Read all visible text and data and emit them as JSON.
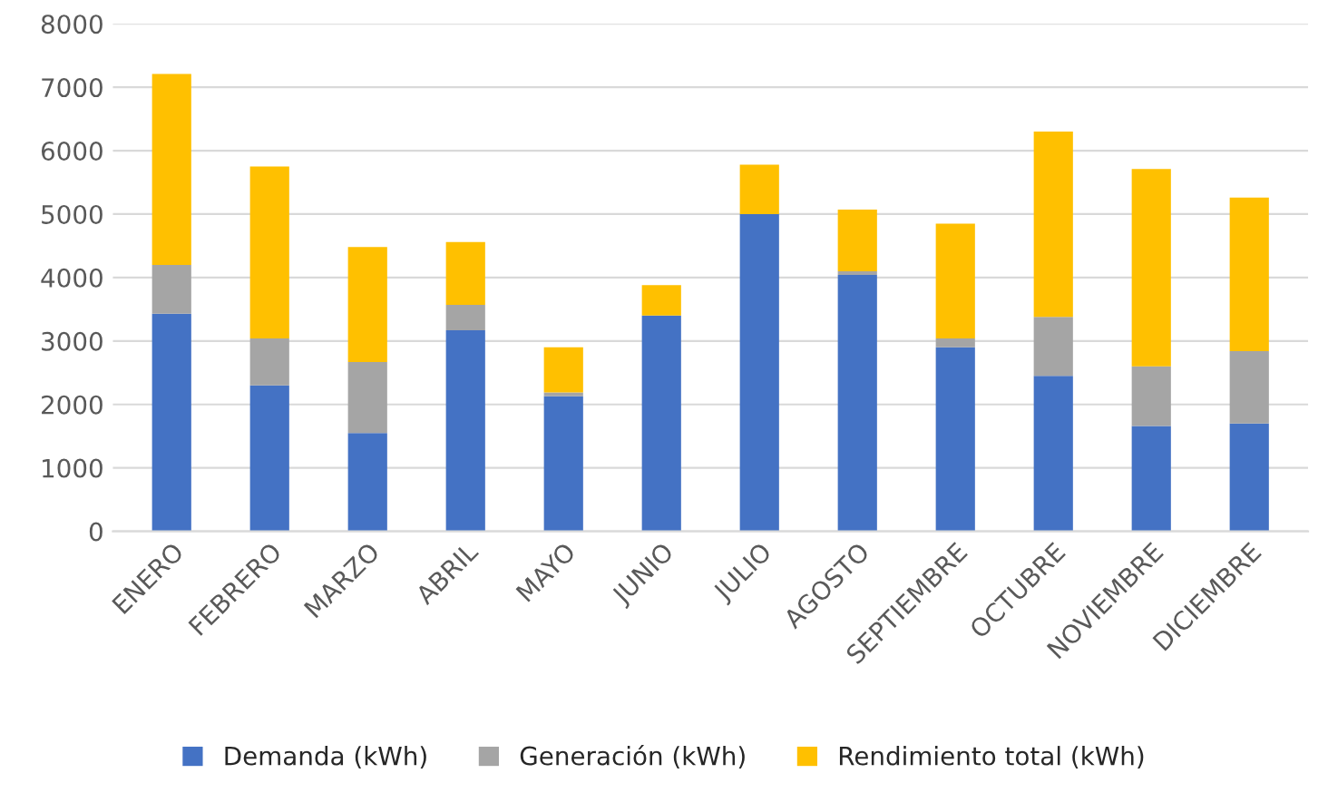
{
  "chart_data": {
    "type": "bar",
    "stacked": true,
    "categories": [
      "ENERO",
      "FEBRERO",
      "MARZO",
      "ABRIL",
      "MAYO",
      "JUNIO",
      "JULIO",
      "AGOSTO",
      "SEPTIEMBRE",
      "OCTUBRE",
      "NOVIEMBRE",
      "DICIEMBRE"
    ],
    "series": [
      {
        "name": "Demanda (kWh)",
        "color": "#4472c4",
        "values": [
          3430,
          2300,
          1550,
          3170,
          2130,
          3400,
          5000,
          4040,
          2900,
          2450,
          1660,
          1700
        ]
      },
      {
        "name": "Generación (kWh)",
        "color": "#a5a5a5",
        "values": [
          770,
          740,
          1120,
          400,
          60,
          null,
          0,
          60,
          140,
          930,
          940,
          1140
        ]
      },
      {
        "name": "Rendimiento total (kWh)",
        "color": "#ffc000",
        "values": [
          3010,
          2710,
          1810,
          990,
          710,
          480,
          780,
          970,
          1810,
          2920,
          3110,
          2420
        ]
      }
    ],
    "ylim": [
      0,
      8000
    ],
    "yticks": [
      0,
      1000,
      2000,
      3000,
      4000,
      5000,
      6000,
      7000,
      8000
    ],
    "grid": "y",
    "legend": "bottom"
  }
}
